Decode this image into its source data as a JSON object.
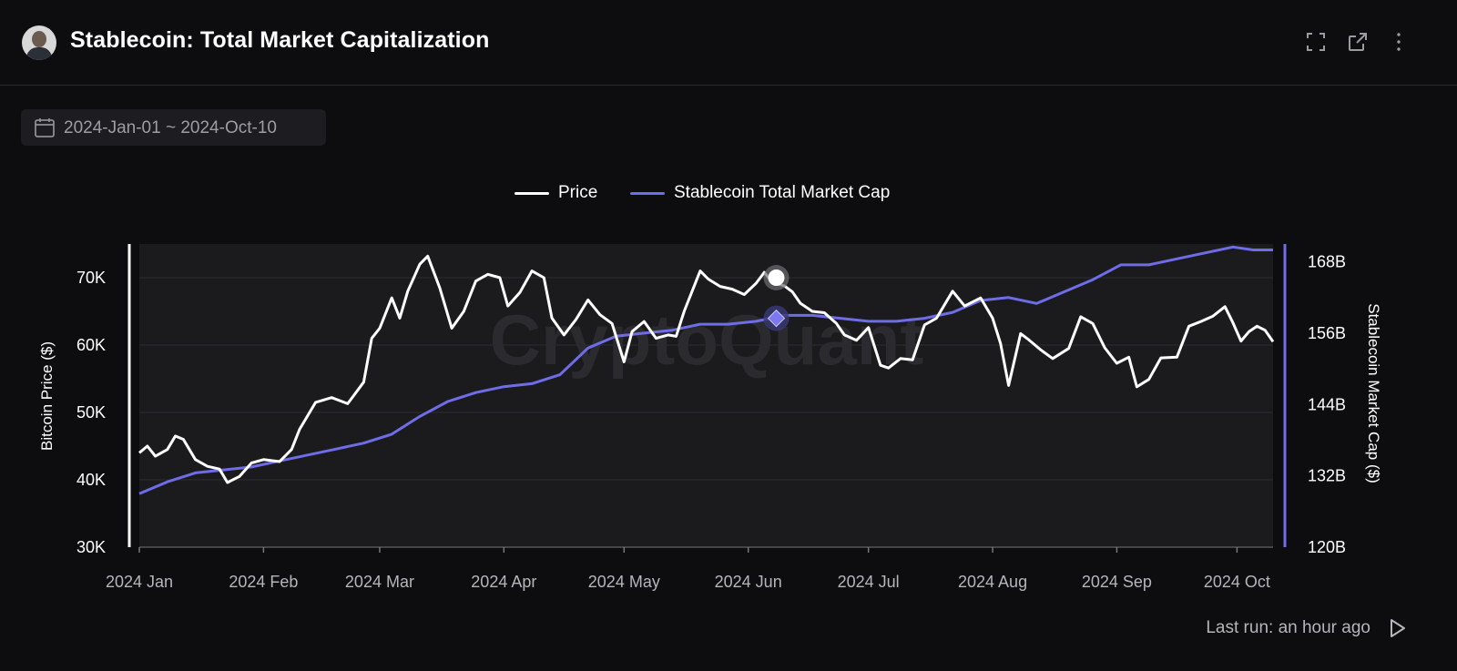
{
  "header": {
    "title": "Stablecoin: Total Market Capitalization",
    "icons": [
      "fullscreen-icon",
      "external-link-icon",
      "more-vertical-icon"
    ]
  },
  "date_range": {
    "label": "2024-Jan-01 ~ 2024-Oct-10",
    "icon": "calendar-icon"
  },
  "footer": {
    "last_run": "Last run: an hour ago",
    "icon": "play-icon"
  },
  "colors": {
    "price": "#ffffff",
    "stablecoin": "#6f6ce8",
    "plot_bg": "#1b1b1e",
    "page_bg": "#0d0d0f"
  },
  "watermark": "CryptoQuant",
  "chart_data": {
    "type": "line",
    "x_axis": {
      "range": [
        "2024-01-01",
        "2024-10-10"
      ],
      "ticks": [
        "2024 Jan",
        "2024 Feb",
        "2024 Mar",
        "2024 Apr",
        "2024 May",
        "2024 Jun",
        "2024 Jul",
        "2024 Aug",
        "2024 Sep",
        "2024 Oct"
      ]
    },
    "y_left": {
      "label": "Bitcoin Price ($)",
      "range": [
        30000,
        75000
      ],
      "ticks": [
        "30K",
        "40K",
        "50K",
        "60K",
        "70K"
      ],
      "tick_values": [
        30000,
        40000,
        50000,
        60000,
        70000
      ]
    },
    "y_right": {
      "label": "Stablecoin Market Cap ($)",
      "range": [
        120,
        171
      ],
      "ticks": [
        "120B",
        "132B",
        "144B",
        "156B",
        "168B"
      ],
      "tick_values": [
        120,
        132,
        144,
        156,
        168
      ]
    },
    "legend": [
      "Price",
      "Stablecoin Total Market Cap"
    ],
    "grid": true,
    "legend_position": "top-center",
    "series": [
      {
        "name": "Price",
        "axis": "left",
        "points": [
          [
            "2024-01-01",
            44000
          ],
          [
            "2024-01-03",
            45000
          ],
          [
            "2024-01-05",
            43500
          ],
          [
            "2024-01-08",
            44500
          ],
          [
            "2024-01-10",
            46500
          ],
          [
            "2024-01-12",
            46000
          ],
          [
            "2024-01-15",
            43000
          ],
          [
            "2024-01-18",
            42000
          ],
          [
            "2024-01-21",
            41600
          ],
          [
            "2024-01-23",
            39600
          ],
          [
            "2024-01-26",
            40500
          ],
          [
            "2024-01-29",
            42500
          ],
          [
            "2024-02-01",
            43000
          ],
          [
            "2024-02-05",
            42700
          ],
          [
            "2024-02-08",
            44500
          ],
          [
            "2024-02-10",
            47500
          ],
          [
            "2024-02-14",
            51500
          ],
          [
            "2024-02-18",
            52200
          ],
          [
            "2024-02-22",
            51300
          ],
          [
            "2024-02-26",
            54500
          ],
          [
            "2024-02-28",
            61000
          ],
          [
            "2024-03-01",
            62500
          ],
          [
            "2024-03-04",
            67000
          ],
          [
            "2024-03-06",
            64000
          ],
          [
            "2024-03-08",
            68000
          ],
          [
            "2024-03-11",
            72000
          ],
          [
            "2024-03-13",
            73200
          ],
          [
            "2024-03-16",
            68500
          ],
          [
            "2024-03-19",
            62500
          ],
          [
            "2024-03-22",
            65000
          ],
          [
            "2024-03-25",
            69500
          ],
          [
            "2024-03-28",
            70500
          ],
          [
            "2024-03-31",
            70000
          ],
          [
            "2024-04-02",
            65800
          ],
          [
            "2024-04-05",
            67800
          ],
          [
            "2024-04-08",
            71000
          ],
          [
            "2024-04-11",
            70000
          ],
          [
            "2024-04-13",
            64000
          ],
          [
            "2024-04-16",
            61500
          ],
          [
            "2024-04-19",
            63800
          ],
          [
            "2024-04-22",
            66700
          ],
          [
            "2024-04-25",
            64500
          ],
          [
            "2024-04-28",
            63200
          ],
          [
            "2024-05-01",
            57500
          ],
          [
            "2024-05-03",
            62000
          ],
          [
            "2024-05-06",
            63500
          ],
          [
            "2024-05-09",
            61000
          ],
          [
            "2024-05-12",
            61500
          ],
          [
            "2024-05-14",
            61300
          ],
          [
            "2024-05-16",
            65000
          ],
          [
            "2024-05-20",
            71000
          ],
          [
            "2024-05-22",
            69800
          ],
          [
            "2024-05-25",
            68700
          ],
          [
            "2024-05-28",
            68300
          ],
          [
            "2024-05-31",
            67500
          ],
          [
            "2024-06-03",
            69200
          ],
          [
            "2024-06-05",
            70800
          ],
          [
            "2024-06-07",
            69300
          ],
          [
            "2024-06-10",
            68800
          ],
          [
            "2024-06-12",
            67900
          ],
          [
            "2024-06-14",
            66200
          ],
          [
            "2024-06-17",
            65000
          ],
          [
            "2024-06-20",
            64800
          ],
          [
            "2024-06-23",
            63200
          ],
          [
            "2024-06-25",
            61500
          ],
          [
            "2024-06-28",
            60700
          ],
          [
            "2024-07-01",
            62600
          ],
          [
            "2024-07-04",
            57000
          ],
          [
            "2024-07-06",
            56600
          ],
          [
            "2024-07-09",
            58000
          ],
          [
            "2024-07-12",
            57800
          ],
          [
            "2024-07-15",
            63000
          ],
          [
            "2024-07-18",
            64000
          ],
          [
            "2024-07-22",
            68000
          ],
          [
            "2024-07-25",
            65800
          ],
          [
            "2024-07-29",
            67000
          ],
          [
            "2024-08-01",
            64000
          ],
          [
            "2024-08-03",
            60200
          ],
          [
            "2024-08-05",
            54000
          ],
          [
            "2024-08-08",
            61700
          ],
          [
            "2024-08-10",
            60800
          ],
          [
            "2024-08-13",
            59300
          ],
          [
            "2024-08-16",
            58000
          ],
          [
            "2024-08-20",
            59500
          ],
          [
            "2024-08-23",
            64200
          ],
          [
            "2024-08-26",
            63200
          ],
          [
            "2024-08-29",
            59600
          ],
          [
            "2024-09-01",
            57300
          ],
          [
            "2024-09-04",
            58200
          ],
          [
            "2024-09-06",
            53800
          ],
          [
            "2024-09-09",
            54900
          ],
          [
            "2024-09-12",
            58100
          ],
          [
            "2024-09-16",
            58200
          ],
          [
            "2024-09-19",
            62800
          ],
          [
            "2024-09-22",
            63500
          ],
          [
            "2024-09-25",
            64300
          ],
          [
            "2024-09-28",
            65700
          ],
          [
            "2024-09-30",
            63300
          ],
          [
            "2024-10-02",
            60600
          ],
          [
            "2024-10-04",
            62000
          ],
          [
            "2024-10-06",
            62800
          ],
          [
            "2024-10-08",
            62200
          ],
          [
            "2024-10-10",
            60500
          ]
        ]
      },
      {
        "name": "Stablecoin Total Market Cap",
        "axis": "right",
        "points": [
          [
            "2024-01-01",
            129
          ],
          [
            "2024-01-08",
            131
          ],
          [
            "2024-01-15",
            132.5
          ],
          [
            "2024-01-22",
            133
          ],
          [
            "2024-01-29",
            133.5
          ],
          [
            "2024-02-05",
            134.5
          ],
          [
            "2024-02-12",
            135.5
          ],
          [
            "2024-02-19",
            136.5
          ],
          [
            "2024-02-26",
            137.5
          ],
          [
            "2024-03-04",
            139
          ],
          [
            "2024-03-11",
            142
          ],
          [
            "2024-03-18",
            144.5
          ],
          [
            "2024-03-25",
            146
          ],
          [
            "2024-04-01",
            147
          ],
          [
            "2024-04-08",
            147.5
          ],
          [
            "2024-04-15",
            149
          ],
          [
            "2024-04-22",
            153.5
          ],
          [
            "2024-04-29",
            155.5
          ],
          [
            "2024-05-06",
            156
          ],
          [
            "2024-05-13",
            156.5
          ],
          [
            "2024-05-20",
            157.5
          ],
          [
            "2024-05-27",
            157.5
          ],
          [
            "2024-06-03",
            158
          ],
          [
            "2024-06-10",
            159
          ],
          [
            "2024-06-17",
            159
          ],
          [
            "2024-06-24",
            158.5
          ],
          [
            "2024-07-01",
            158
          ],
          [
            "2024-07-08",
            158
          ],
          [
            "2024-07-15",
            158.5
          ],
          [
            "2024-07-22",
            159.5
          ],
          [
            "2024-07-29",
            161.5
          ],
          [
            "2024-08-05",
            162
          ],
          [
            "2024-08-12",
            161
          ],
          [
            "2024-08-19",
            163
          ],
          [
            "2024-08-26",
            165
          ],
          [
            "2024-09-02",
            167.5
          ],
          [
            "2024-09-09",
            167.5
          ],
          [
            "2024-09-16",
            168.5
          ],
          [
            "2024-09-23",
            169.5
          ],
          [
            "2024-09-30",
            170.5
          ],
          [
            "2024-10-05",
            170
          ],
          [
            "2024-10-10",
            170
          ]
        ]
      }
    ],
    "highlight": {
      "date": "2024-06-08",
      "price": 70000,
      "stablecoin": 158.5
    }
  }
}
